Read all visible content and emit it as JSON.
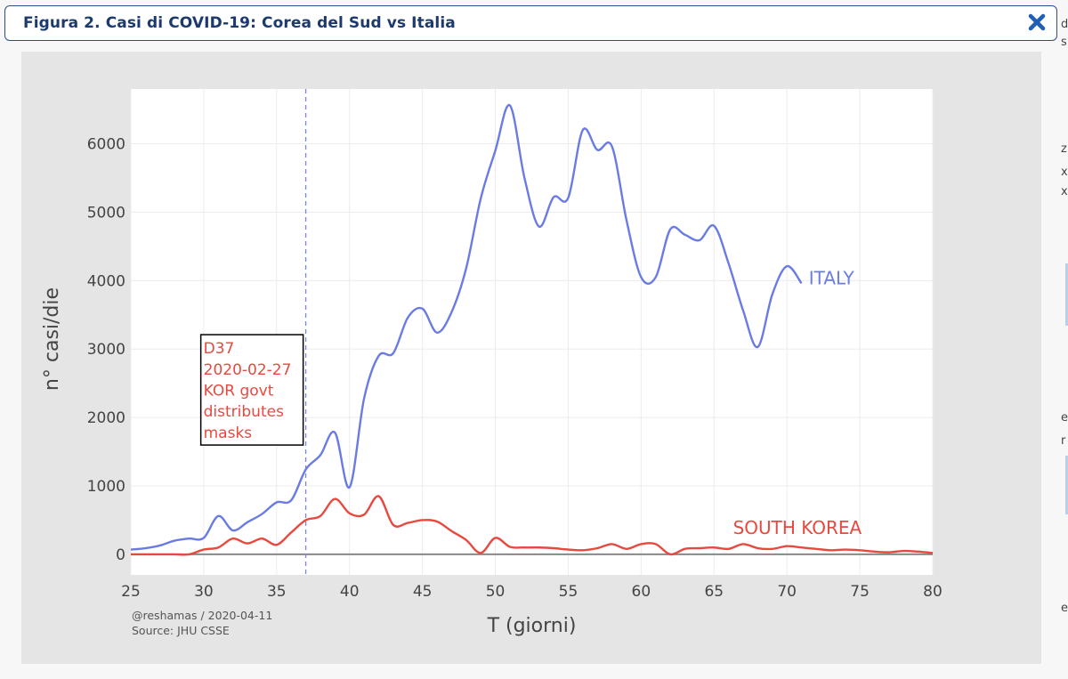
{
  "dialog": {
    "title": "Figura 2. Casi di COVID-19: Corea del Sud vs Italia",
    "close_icon": "close-x-icon"
  },
  "colors": {
    "italy": "#6a7be3",
    "korea": "#e8493f",
    "title": "#1c3a6e",
    "frame": "#2e4d8c",
    "plot_bg": "#ffffff",
    "paper_bg": "#e5e5e5"
  },
  "credit": {
    "line1": "@reshamas / 2020-04-11",
    "line2": "Source: JHU CSSE"
  },
  "annotation": {
    "lines": [
      "D37",
      "2020-02-27",
      "KOR govt",
      "distributes",
      "masks"
    ],
    "x": 37
  },
  "chart_data": {
    "type": "line",
    "title": "",
    "xlabel": "T (giorni)",
    "ylabel": "n° casi/die",
    "xlim": [
      25,
      80
    ],
    "ylim": [
      -300,
      6800
    ],
    "xticks": [
      25,
      30,
      35,
      40,
      45,
      50,
      55,
      60,
      65,
      70,
      75,
      80
    ],
    "yticks": [
      0,
      1000,
      2000,
      3000,
      4000,
      5000,
      6000
    ],
    "grid": true,
    "legend": "inline labels",
    "series": [
      {
        "name": "ITALY",
        "x": [
          25,
          26,
          27,
          28,
          29,
          30,
          31,
          32,
          33,
          34,
          35,
          36,
          37,
          38,
          39,
          40,
          41,
          42,
          43,
          44,
          45,
          46,
          47,
          48,
          49,
          50,
          51,
          52,
          53,
          54,
          55,
          56,
          57,
          58,
          59,
          60,
          61,
          62,
          63,
          64,
          65,
          66,
          67,
          68,
          69,
          70,
          71
        ],
        "y": [
          70,
          90,
          130,
          200,
          230,
          240,
          560,
          350,
          470,
          590,
          760,
          790,
          1240,
          1450,
          1780,
          980,
          2280,
          2900,
          2940,
          3460,
          3590,
          3240,
          3540,
          4180,
          5200,
          5900,
          6560,
          5500,
          4790,
          5220,
          5210,
          6200,
          5910,
          5960,
          4880,
          4050,
          4050,
          4750,
          4670,
          4590,
          4800,
          4250,
          3560,
          3030,
          3800,
          4210,
          3960
        ]
      },
      {
        "name": "SOUTH KOREA",
        "x": [
          25,
          26,
          27,
          28,
          29,
          30,
          31,
          32,
          33,
          34,
          35,
          36,
          37,
          38,
          39,
          40,
          41,
          42,
          43,
          44,
          45,
          46,
          47,
          48,
          49,
          50,
          51,
          52,
          53,
          54,
          55,
          56,
          57,
          58,
          59,
          60,
          61,
          62,
          63,
          64,
          65,
          66,
          67,
          68,
          69,
          70,
          71,
          72,
          73,
          74,
          75,
          76,
          77,
          78,
          79,
          80
        ],
        "y": [
          0,
          0,
          0,
          0,
          0,
          70,
          100,
          230,
          160,
          230,
          140,
          320,
          500,
          560,
          810,
          600,
          580,
          850,
          430,
          460,
          500,
          480,
          340,
          210,
          20,
          240,
          110,
          100,
          100,
          90,
          70,
          60,
          90,
          150,
          80,
          150,
          150,
          0,
          80,
          90,
          100,
          80,
          150,
          90,
          80,
          120,
          100,
          80,
          60,
          70,
          60,
          40,
          30,
          50,
          40,
          20
        ]
      }
    ]
  }
}
